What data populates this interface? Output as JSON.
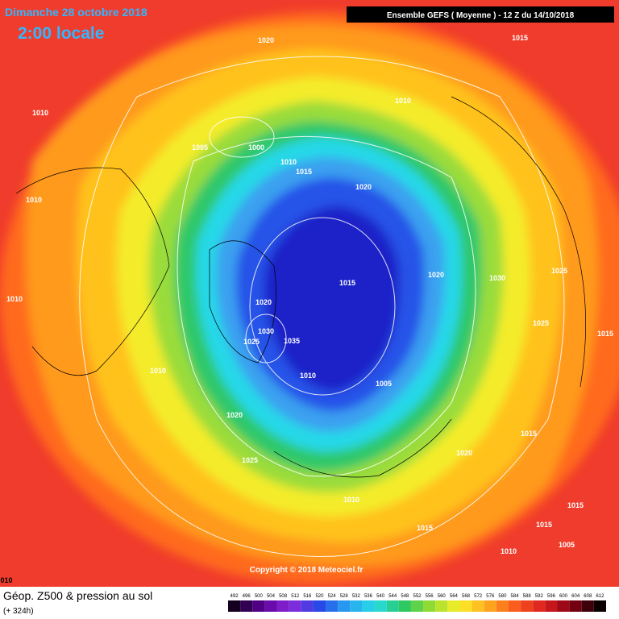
{
  "header": {
    "date": "Dimanche 28 octobre 2018",
    "time": "2:00 locale",
    "run": "Ensemble GEFS  ( Moyenne )  -  12 Z du 14/10/2018"
  },
  "copyright": "Copyright © 2018 Meteociel.fr",
  "footer": {
    "title": "Géop. Z500 & pression au sol",
    "lead": "(+ 324h)"
  },
  "legend": {
    "values": [
      492,
      496,
      500,
      504,
      508,
      512,
      516,
      520,
      524,
      528,
      532,
      536,
      540,
      544,
      548,
      552,
      556,
      560,
      564,
      568,
      572,
      576,
      580,
      584,
      588,
      592,
      596,
      600,
      604,
      608,
      612
    ]
  },
  "isobar_labels": [
    "1020",
    "1015",
    "1010",
    "1010",
    "1005",
    "1000",
    "1010",
    "1015",
    "1020",
    "1010",
    "1025",
    "1015",
    "1020",
    "1030",
    "1010",
    "1020",
    "1030",
    "1025",
    "1035",
    "1025",
    "1015",
    "1010",
    "1010",
    "1005",
    "1020",
    "1015",
    "1020",
    "1025",
    "1010",
    "1015",
    "1015",
    "1015",
    "1010",
    "1005",
    "010"
  ]
}
